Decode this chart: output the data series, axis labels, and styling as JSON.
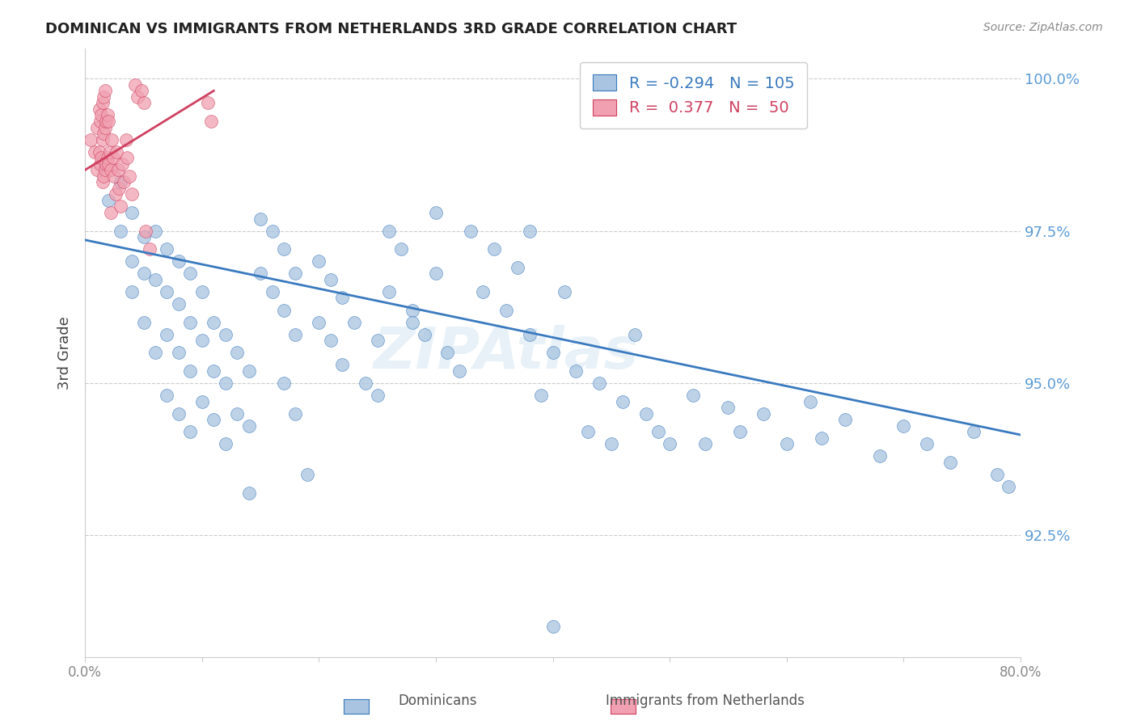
{
  "title": "DOMINICAN VS IMMIGRANTS FROM NETHERLANDS 3RD GRADE CORRELATION CHART",
  "source": "Source: ZipAtlas.com",
  "ylabel": "3rd Grade",
  "ytick_labels": [
    "92.5%",
    "95.0%",
    "97.5%",
    "100.0%"
  ],
  "ytick_values": [
    0.925,
    0.95,
    0.975,
    1.0
  ],
  "xlim": [
    0.0,
    0.8
  ],
  "ylim": [
    0.905,
    1.005
  ],
  "blue_R": -0.294,
  "blue_N": 105,
  "pink_R": 0.377,
  "pink_N": 50,
  "blue_color": "#a8c4e0",
  "blue_line_color": "#3a7abf",
  "pink_color": "#f0a0b0",
  "pink_line_color": "#d04060",
  "blue_scatter_x": [
    0.02,
    0.03,
    0.03,
    0.04,
    0.04,
    0.04,
    0.05,
    0.05,
    0.05,
    0.06,
    0.06,
    0.06,
    0.07,
    0.07,
    0.07,
    0.07,
    0.08,
    0.08,
    0.08,
    0.08,
    0.09,
    0.09,
    0.09,
    0.09,
    0.1,
    0.1,
    0.1,
    0.11,
    0.11,
    0.11,
    0.12,
    0.12,
    0.12,
    0.13,
    0.13,
    0.14,
    0.14,
    0.14,
    0.15,
    0.15,
    0.16,
    0.16,
    0.17,
    0.17,
    0.17,
    0.18,
    0.18,
    0.18,
    0.19,
    0.2,
    0.2,
    0.21,
    0.21,
    0.22,
    0.22,
    0.23,
    0.24,
    0.25,
    0.25,
    0.26,
    0.26,
    0.27,
    0.28,
    0.28,
    0.29,
    0.3,
    0.31,
    0.32,
    0.33,
    0.34,
    0.35,
    0.36,
    0.37,
    0.38,
    0.38,
    0.39,
    0.4,
    0.41,
    0.42,
    0.43,
    0.44,
    0.45,
    0.46,
    0.47,
    0.48,
    0.49,
    0.5,
    0.52,
    0.53,
    0.55,
    0.56,
    0.58,
    0.6,
    0.62,
    0.63,
    0.65,
    0.68,
    0.7,
    0.72,
    0.74,
    0.76,
    0.78,
    0.79,
    0.3,
    0.4
  ],
  "blue_scatter_y": [
    0.98,
    0.975,
    0.983,
    0.978,
    0.97,
    0.965,
    0.974,
    0.968,
    0.96,
    0.975,
    0.967,
    0.955,
    0.972,
    0.965,
    0.958,
    0.948,
    0.97,
    0.963,
    0.955,
    0.945,
    0.968,
    0.96,
    0.952,
    0.942,
    0.965,
    0.957,
    0.947,
    0.96,
    0.952,
    0.944,
    0.958,
    0.95,
    0.94,
    0.955,
    0.945,
    0.952,
    0.943,
    0.932,
    0.977,
    0.968,
    0.975,
    0.965,
    0.972,
    0.962,
    0.95,
    0.968,
    0.958,
    0.945,
    0.935,
    0.97,
    0.96,
    0.967,
    0.957,
    0.964,
    0.953,
    0.96,
    0.95,
    0.957,
    0.948,
    0.975,
    0.965,
    0.972,
    0.962,
    0.96,
    0.958,
    0.968,
    0.955,
    0.952,
    0.975,
    0.965,
    0.972,
    0.962,
    0.969,
    0.958,
    0.975,
    0.948,
    0.955,
    0.965,
    0.952,
    0.942,
    0.95,
    0.94,
    0.947,
    0.958,
    0.945,
    0.942,
    0.94,
    0.948,
    0.94,
    0.946,
    0.942,
    0.945,
    0.94,
    0.947,
    0.941,
    0.944,
    0.938,
    0.943,
    0.94,
    0.937,
    0.942,
    0.935,
    0.933,
    0.978,
    0.91
  ],
  "pink_scatter_x": [
    0.005,
    0.008,
    0.01,
    0.01,
    0.012,
    0.012,
    0.013,
    0.013,
    0.014,
    0.014,
    0.015,
    0.015,
    0.015,
    0.016,
    0.016,
    0.016,
    0.017,
    0.017,
    0.017,
    0.018,
    0.018,
    0.019,
    0.019,
    0.02,
    0.02,
    0.021,
    0.022,
    0.022,
    0.023,
    0.024,
    0.025,
    0.026,
    0.027,
    0.028,
    0.029,
    0.03,
    0.032,
    0.033,
    0.035,
    0.036,
    0.038,
    0.04,
    0.043,
    0.045,
    0.048,
    0.05,
    0.052,
    0.055,
    0.105,
    0.108
  ],
  "pink_scatter_y": [
    0.99,
    0.988,
    0.992,
    0.985,
    0.995,
    0.988,
    0.993,
    0.986,
    0.994,
    0.987,
    0.996,
    0.99,
    0.983,
    0.997,
    0.991,
    0.984,
    0.998,
    0.992,
    0.985,
    0.993,
    0.986,
    0.994,
    0.987,
    0.993,
    0.986,
    0.988,
    0.985,
    0.978,
    0.99,
    0.987,
    0.984,
    0.981,
    0.988,
    0.985,
    0.982,
    0.979,
    0.986,
    0.983,
    0.99,
    0.987,
    0.984,
    0.981,
    0.999,
    0.997,
    0.998,
    0.996,
    0.975,
    0.972,
    0.996,
    0.993
  ],
  "blue_trendline_x": [
    0.0,
    0.8
  ],
  "blue_trendline_y": [
    0.9735,
    0.9415
  ],
  "pink_trendline_x": [
    0.0,
    0.11
  ],
  "pink_trendline_y": [
    0.985,
    0.998
  ]
}
